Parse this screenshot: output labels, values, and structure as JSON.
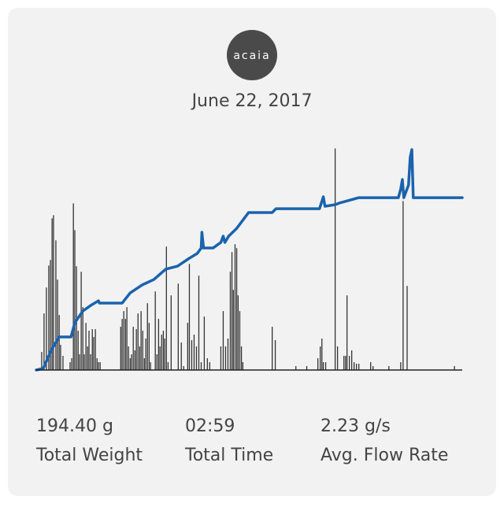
{
  "header": {
    "logo": "acaia",
    "date": "June 22, 2017"
  },
  "stats": [
    {
      "value": "194.40 g",
      "label": "Total Weight"
    },
    {
      "value": "02:59",
      "label": "Total Time"
    },
    {
      "value": "2.23 g/s",
      "label": "Avg. Flow Rate"
    }
  ],
  "chart_data": {
    "type": "combo",
    "xlim": [
      0,
      180
    ],
    "ylim": [
      0,
      250
    ],
    "y2lim": [
      0,
      14.1
    ],
    "series": [
      {
        "type": "bar",
        "axis": "y2",
        "color": "#333333",
        "x": [
          2.3,
          3.3,
          4.3,
          5.3,
          6,
          6.7,
          7.3,
          8.3,
          9,
          9.7,
          10.3,
          11.3,
          14.3,
          15,
          15.7,
          16.3,
          17,
          17.7,
          18.3,
          19,
          19.7,
          20.3,
          21,
          21.7,
          22.3,
          23,
          23.7,
          24.3,
          25,
          25.7,
          26.3,
          27,
          35.7,
          36.3,
          37,
          37.7,
          38.3,
          39,
          39.7,
          40.3,
          41,
          41.7,
          42.3,
          43,
          43.7,
          44.3,
          45,
          45.7,
          46.3,
          47,
          47.7,
          48.3,
          50.3,
          51,
          51.7,
          52.3,
          53,
          53.7,
          54.3,
          55,
          55.7,
          57,
          60,
          61.3,
          62.3,
          64,
          64.7,
          65.7,
          66.7,
          67.7,
          68.7,
          69.7,
          71,
          72.3,
          73.3,
          78,
          79,
          80,
          81,
          82,
          82.7,
          83.3,
          84,
          84.7,
          85.3,
          86,
          86.7,
          87.3,
          99.7,
          101,
          109.7,
          114.3,
          119,
          120,
          120.7,
          121.3,
          122.3,
          126.3,
          127.3,
          130,
          130.7,
          131.3,
          132.3,
          133.3,
          134.3,
          135.3,
          136.3,
          141.3,
          142.3,
          149,
          154,
          155,
          156.7,
          176.7
        ],
        "values": [
          1.15,
          3.6,
          5.25,
          6.65,
          7,
          9.65,
          9.85,
          8.25,
          5.75,
          3.5,
          1.6,
          0.9,
          0.5,
          0.75,
          10.6,
          8.9,
          6.6,
          2.5,
          1,
          6.25,
          4,
          1,
          3,
          1.5,
          2.5,
          1,
          2.6,
          2.1,
          2.6,
          0.75,
          0.5,
          0.5,
          2.75,
          3.25,
          3.75,
          3.25,
          4,
          1.5,
          0.75,
          1,
          2.75,
          1.25,
          2.6,
          3.6,
          1.5,
          3.75,
          2.5,
          0.75,
          2,
          4.25,
          3,
          0.5,
          5,
          1,
          3.25,
          1.5,
          2.25,
          2.5,
          2,
          7.85,
          0.5,
          4.75,
          5.5,
          1.75,
          0.25,
          3,
          6.75,
          1.9,
          2.25,
          1.5,
          6,
          0.5,
          3.4,
          0.75,
          0.5,
          1.5,
          3.75,
          1.5,
          2,
          6.25,
          7.5,
          5.1,
          8,
          7.75,
          4.75,
          3.75,
          1.5,
          0.5,
          2.75,
          1.9,
          0.25,
          0.25,
          0.75,
          1.5,
          2,
          0.5,
          0.5,
          14.1,
          1.5,
          0.9,
          0.9,
          4.75,
          0.9,
          1.25,
          0.5,
          0.4,
          0.4,
          0.5,
          0.25,
          0.25,
          0.5,
          10.75,
          5.35,
          0.25
        ]
      },
      {
        "type": "line",
        "color": "#1a63ad",
        "x": [
          0,
          3,
          6.3,
          9.7,
          14.7,
          16.3,
          19.7,
          23,
          26.3,
          26.7,
          36.3,
          39.7,
          44.7,
          49.7,
          54.7,
          59.7,
          64.7,
          68,
          69.7,
          70,
          70.7,
          74.7,
          78,
          79,
          79.7,
          81.3,
          84.7,
          89.7,
          99.7,
          101.3,
          119.7,
          121.3,
          122,
          126.3,
          128,
          136.3,
          153,
          154,
          154.7,
          155.3,
          157.3,
          158,
          158.7,
          159.3,
          180
        ],
        "values": [
          0,
          1.8,
          22.2,
          37.3,
          37.3,
          53.3,
          66.6,
          72.8,
          78.1,
          75.5,
          75.5,
          87,
          95.9,
          102.1,
          113.7,
          117.2,
          126.1,
          131.4,
          137.6,
          155.4,
          137.6,
          137.6,
          143.9,
          151,
          143.9,
          151,
          159.8,
          177.6,
          177.6,
          182,
          182,
          195.4,
          184.7,
          186.5,
          188.3,
          194.4,
          194.4,
          204.2,
          214.9,
          194.4,
          208.7,
          239.8,
          248.6,
          194.4,
          194.4
        ]
      }
    ]
  }
}
